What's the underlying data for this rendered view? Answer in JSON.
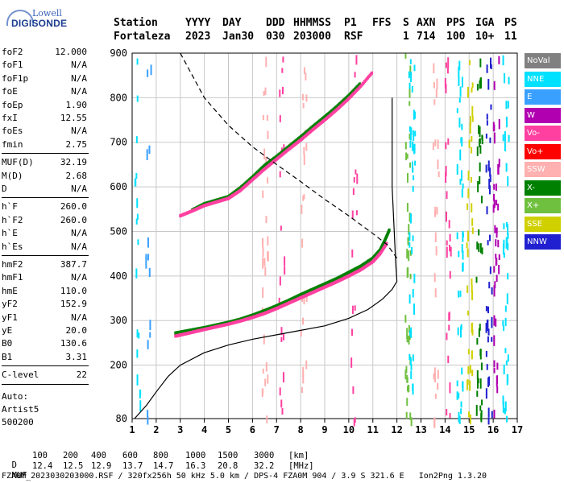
{
  "logo": {
    "line1": "Lowell",
    "line2": "DIGISONDE"
  },
  "header": {
    "row1": [
      "Station",
      "YYYY",
      "DAY",
      "DDD",
      "HHMMSS",
      "P1",
      "FFS",
      "S",
      "AXN",
      "PPS",
      "IGA",
      "PS"
    ],
    "row2": [
      "Fortaleza",
      "2023",
      "Jan30",
      "030",
      "203000",
      "RSF",
      "1",
      "714",
      "100",
      "10+",
      "11"
    ]
  },
  "params": [
    {
      "k": "foF2",
      "v": "12.000"
    },
    {
      "k": "foF1",
      "v": "N/A"
    },
    {
      "k": "foF1p",
      "v": "N/A"
    },
    {
      "k": "foE",
      "v": "N/A"
    },
    {
      "k": "foEp",
      "v": "1.90"
    },
    {
      "k": "fxI",
      "v": "12.55"
    },
    {
      "k": "foEs",
      "v": "N/A"
    },
    {
      "k": "fmin",
      "v": "2.75"
    },
    {
      "k": "MUF(D)",
      "v": "32.19"
    },
    {
      "k": "M(D)",
      "v": "2.68"
    },
    {
      "k": "D",
      "v": "N/A"
    },
    {
      "k": "h`F",
      "v": "260.0"
    },
    {
      "k": "h`F2",
      "v": "260.0"
    },
    {
      "k": "h`E",
      "v": "N/A"
    },
    {
      "k": "h`Es",
      "v": "N/A"
    },
    {
      "k": "hmF2",
      "v": "387.7"
    },
    {
      "k": "hmF1",
      "v": "N/A"
    },
    {
      "k": "hmE",
      "v": "110.0"
    },
    {
      "k": "yF2",
      "v": "152.9"
    },
    {
      "k": "yF1",
      "v": "N/A"
    },
    {
      "k": "yE",
      "v": "20.0"
    },
    {
      "k": "B0",
      "v": "130.6"
    },
    {
      "k": "B1",
      "v": "3.31"
    },
    {
      "k": "C-level",
      "v": "22"
    }
  ],
  "auto": [
    "Auto:",
    "Artist5",
    "500200"
  ],
  "legend": [
    {
      "label": "NoVal",
      "color": "#808080"
    },
    {
      "label": "NNE",
      "color": "#00e0ff"
    },
    {
      "label": "E",
      "color": "#3aa0ff"
    },
    {
      "label": "W",
      "color": "#b000b0"
    },
    {
      "label": "Vo-",
      "color": "#ff40a0"
    },
    {
      "label": "Vo+",
      "color": "#ff0000"
    },
    {
      "label": "SSW",
      "color": "#ffb0b0"
    },
    {
      "label": "X-",
      "color": "#008000"
    },
    {
      "label": "X+",
      "color": "#70c040"
    },
    {
      "label": "SSE",
      "color": "#d0d000"
    },
    {
      "label": "NNW",
      "color": "#2020d0"
    }
  ],
  "footer": {
    "d_label": "D",
    "d_values": [
      "100",
      "200",
      "400",
      "600",
      "800",
      "1000",
      "1500",
      "3000"
    ],
    "d_unit": "[km]",
    "muf_label": "MUF",
    "muf_values": [
      "12.4",
      "12.5",
      "12.9",
      "13.7",
      "14.7",
      "16.3",
      "20.8",
      "32.2"
    ],
    "muf_unit": "[MHz]",
    "file_line": "FZA0M_2023030203000.RSF / 320fx256h 50 kHz 5.0 km / DPS-4 FZA0M 904 / 3.9 S 321.6 E   Ion2Png 1.3.20"
  },
  "chart_data": {
    "type": "scatter",
    "title": "",
    "xlabel": "",
    "ylabel": "",
    "xlim": [
      1,
      17
    ],
    "ylim": [
      80,
      900
    ],
    "xticks": [
      1,
      2,
      3,
      4,
      5,
      6,
      7,
      8,
      9,
      10,
      11,
      12,
      13,
      14,
      15,
      16,
      17
    ],
    "yticks": [
      80,
      200,
      300,
      400,
      500,
      600,
      700,
      800,
      900
    ],
    "grid": true,
    "series": [
      {
        "name": "X-",
        "color": "#008000",
        "kind": "points",
        "x": [
          2.8,
          3.2,
          3.6,
          4.0,
          4.5,
          5.0,
          5.5,
          6.0,
          6.5,
          7.0,
          7.5,
          8.0,
          8.5,
          9.0,
          9.5,
          10.0,
          10.5,
          11.0,
          11.3,
          11.5,
          11.7
        ],
        "y": [
          272,
          276,
          280,
          284,
          290,
          296,
          303,
          312,
          322,
          333,
          345,
          358,
          370,
          382,
          394,
          408,
          422,
          440,
          458,
          480,
          505
        ]
      },
      {
        "name": "Vo-",
        "color": "#ff40a0",
        "kind": "points",
        "x": [
          2.8,
          3.2,
          3.6,
          4.0,
          4.5,
          5.0,
          5.5,
          6.0,
          6.5,
          7.0,
          7.5,
          8.0,
          8.5,
          9.0,
          9.5,
          10.0,
          10.5,
          11.0,
          11.3,
          11.6
        ],
        "y": [
          265,
          270,
          275,
          280,
          286,
          292,
          299,
          307,
          316,
          327,
          339,
          351,
          363,
          375,
          387,
          400,
          414,
          432,
          450,
          475
        ]
      },
      {
        "name": "X-",
        "color": "#008000",
        "kind": "points",
        "x": [
          3.5,
          4.0,
          4.5,
          5.0,
          5.5,
          6.0,
          6.5,
          7.0,
          7.5,
          8.0,
          8.5,
          9.0,
          9.5,
          10.0,
          10.5
        ],
        "y": [
          548,
          562,
          570,
          578,
          598,
          622,
          648,
          668,
          690,
          712,
          735,
          757,
          780,
          805,
          833
        ]
      },
      {
        "name": "Vo-",
        "color": "#ff40a0",
        "kind": "points",
        "x": [
          3.0,
          3.5,
          4.0,
          4.5,
          5.0,
          5.5,
          6.0,
          6.5,
          7.0,
          7.5,
          8.0,
          8.5,
          9.0,
          9.5,
          10.0,
          10.5,
          11.0
        ],
        "y": [
          535,
          546,
          558,
          566,
          574,
          592,
          616,
          640,
          662,
          684,
          705,
          728,
          750,
          773,
          798,
          826,
          858
        ]
      },
      {
        "name": "profile",
        "color": "#000000",
        "kind": "line",
        "x": [
          1.1,
          1.6,
          2.0,
          2.5,
          3.0,
          4.0,
          5.0,
          6.0,
          7.0,
          8.0,
          9.0,
          10.0,
          10.8,
          11.4,
          11.8,
          12.0,
          11.95,
          11.8,
          11.8
        ],
        "y": [
          80,
          110,
          140,
          175,
          200,
          228,
          245,
          258,
          268,
          278,
          288,
          305,
          325,
          348,
          370,
          388,
          430,
          600,
          800
        ]
      },
      {
        "name": "muf",
        "color": "#000000",
        "kind": "dashed",
        "x": [
          3.0,
          4.0,
          5.0,
          6.0,
          7.0,
          8.0,
          9.0,
          10.0,
          11.0,
          11.6,
          12.0
        ],
        "y": [
          900,
          800,
          738,
          690,
          650,
          612,
          572,
          535,
          495,
          470,
          440
        ]
      }
    ]
  }
}
